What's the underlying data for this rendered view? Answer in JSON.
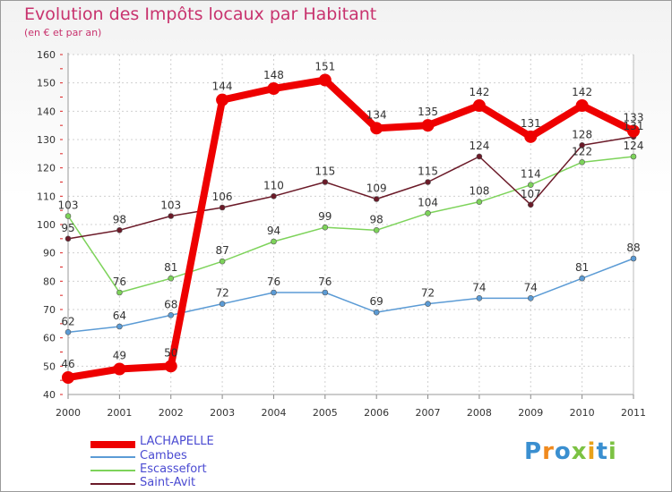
{
  "title": "Evolution des Impôts locaux par Habitant",
  "subtitle": "(en € et par an)",
  "brand": "Proxiti",
  "chart_data": {
    "type": "line",
    "title": "Evolution des Impôts locaux par Habitant",
    "subtitle": "(en € et par an)",
    "xlabel": "",
    "ylabel": "",
    "x": [
      "2000",
      "2001",
      "2002",
      "2003",
      "2004",
      "2005",
      "2006",
      "2007",
      "2008",
      "2009",
      "2010",
      "2011"
    ],
    "ylim": [
      40,
      160
    ],
    "yticks": [
      40,
      50,
      60,
      70,
      80,
      90,
      100,
      110,
      120,
      130,
      140,
      150,
      160
    ],
    "grid": true,
    "legend_position": "bottom-left",
    "series": [
      {
        "name": "Cambes",
        "color": "#5b9bd5",
        "values": [
          62,
          64,
          68,
          72,
          76,
          76,
          69,
          72,
          74,
          74,
          81,
          88
        ]
      },
      {
        "name": "Escassefort",
        "color": "#7dd35a",
        "values": [
          103,
          76,
          81,
          87,
          94,
          99,
          98,
          104,
          108,
          114,
          122,
          124
        ]
      },
      {
        "name": "Saint-Avit",
        "color": "#6b1a28",
        "values": [
          95,
          98,
          103,
          106,
          110,
          115,
          109,
          115,
          124,
          107,
          128,
          131
        ]
      },
      {
        "name": "LACHAPELLE",
        "color": "#ee0000",
        "values": [
          46,
          49,
          50,
          144,
          148,
          151,
          134,
          135,
          142,
          131,
          142,
          133
        ]
      }
    ],
    "legend": [
      "LACHAPELLE",
      "Cambes",
      "Escassefort",
      "Saint-Avit"
    ]
  }
}
